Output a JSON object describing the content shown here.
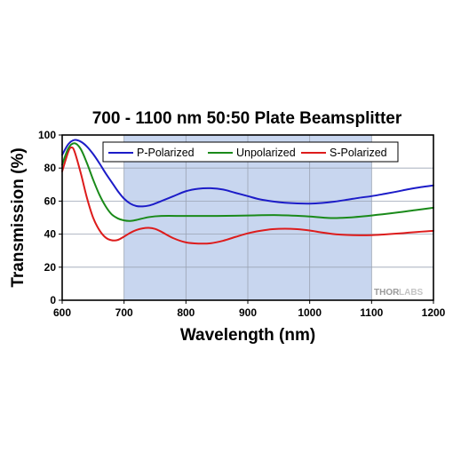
{
  "chart_data": {
    "type": "line",
    "title": "700 - 1100 nm 50:50 Plate Beamsplitter",
    "xlabel": "Wavelength (nm)",
    "ylabel": "Transmission (%)",
    "xlim": [
      600,
      1200
    ],
    "ylim": [
      0,
      100
    ],
    "xticks": [
      600,
      700,
      800,
      900,
      1000,
      1100,
      1200
    ],
    "yticks": [
      0,
      20,
      40,
      60,
      80,
      100
    ],
    "grid": true,
    "legend_position": "top",
    "shaded_region": {
      "x": [
        700,
        1100
      ],
      "color": "#c8d6ef"
    },
    "series": [
      {
        "name": "P-Polarized",
        "color": "#1c1cc8",
        "x": [
          600,
          610,
          620,
          630,
          640,
          650,
          660,
          670,
          680,
          690,
          700,
          710,
          720,
          730,
          740,
          750,
          760,
          780,
          800,
          820,
          840,
          860,
          880,
          900,
          920,
          940,
          960,
          980,
          1000,
          1020,
          1040,
          1060,
          1080,
          1100,
          1120,
          1140,
          1160,
          1180,
          1200
        ],
        "y": [
          88,
          94.5,
          97,
          96,
          93,
          88.5,
          83,
          77,
          71.5,
          66,
          61.5,
          58.5,
          57,
          56.8,
          57.3,
          58.5,
          60,
          63,
          66,
          67.5,
          67.8,
          67,
          65,
          63,
          61,
          59.8,
          59,
          58.6,
          58.5,
          58.9,
          59.7,
          60.8,
          62,
          63,
          64.3,
          65.7,
          67.2,
          68.5,
          69.5
        ]
      },
      {
        "name": "Unpolarized",
        "color": "#1a8a1a",
        "x": [
          600,
          610,
          620,
          630,
          640,
          650,
          660,
          670,
          680,
          690,
          700,
          710,
          720,
          740,
          760,
          800,
          850,
          900,
          950,
          1000,
          1030,
          1060,
          1100,
          1140,
          1170,
          1200
        ],
        "y": [
          82,
          92,
          95,
          91.5,
          83,
          73,
          64,
          57,
          52,
          49.5,
          48.3,
          48,
          48.6,
          50.3,
          51,
          51,
          51,
          51.3,
          51.5,
          50.7,
          49.8,
          50,
          51.3,
          53,
          54.5,
          56
        ]
      },
      {
        "name": "S-Polarized",
        "color": "#dd1c1c",
        "x": [
          600,
          610,
          615,
          620,
          630,
          640,
          650,
          660,
          670,
          680,
          690,
          700,
          710,
          720,
          730,
          740,
          750,
          760,
          780,
          800,
          820,
          840,
          860,
          880,
          900,
          920,
          940,
          960,
          980,
          1000,
          1020,
          1040,
          1060,
          1080,
          1100,
          1120,
          1140,
          1160,
          1180,
          1200
        ],
        "y": [
          78,
          90,
          92.5,
          90,
          77,
          62,
          50,
          42.5,
          38,
          36.3,
          36.5,
          38.5,
          40.8,
          42.5,
          43.5,
          43.8,
          43.2,
          41.5,
          37.5,
          35,
          34.3,
          34.5,
          36,
          38.3,
          40.5,
          42,
          43,
          43.3,
          43,
          42.2,
          41,
          40,
          39.5,
          39.3,
          39.4,
          39.8,
          40.3,
          40.9,
          41.5,
          42
        ]
      }
    ],
    "watermark": {
      "part1": "THOR",
      "part2": "LABS"
    }
  }
}
